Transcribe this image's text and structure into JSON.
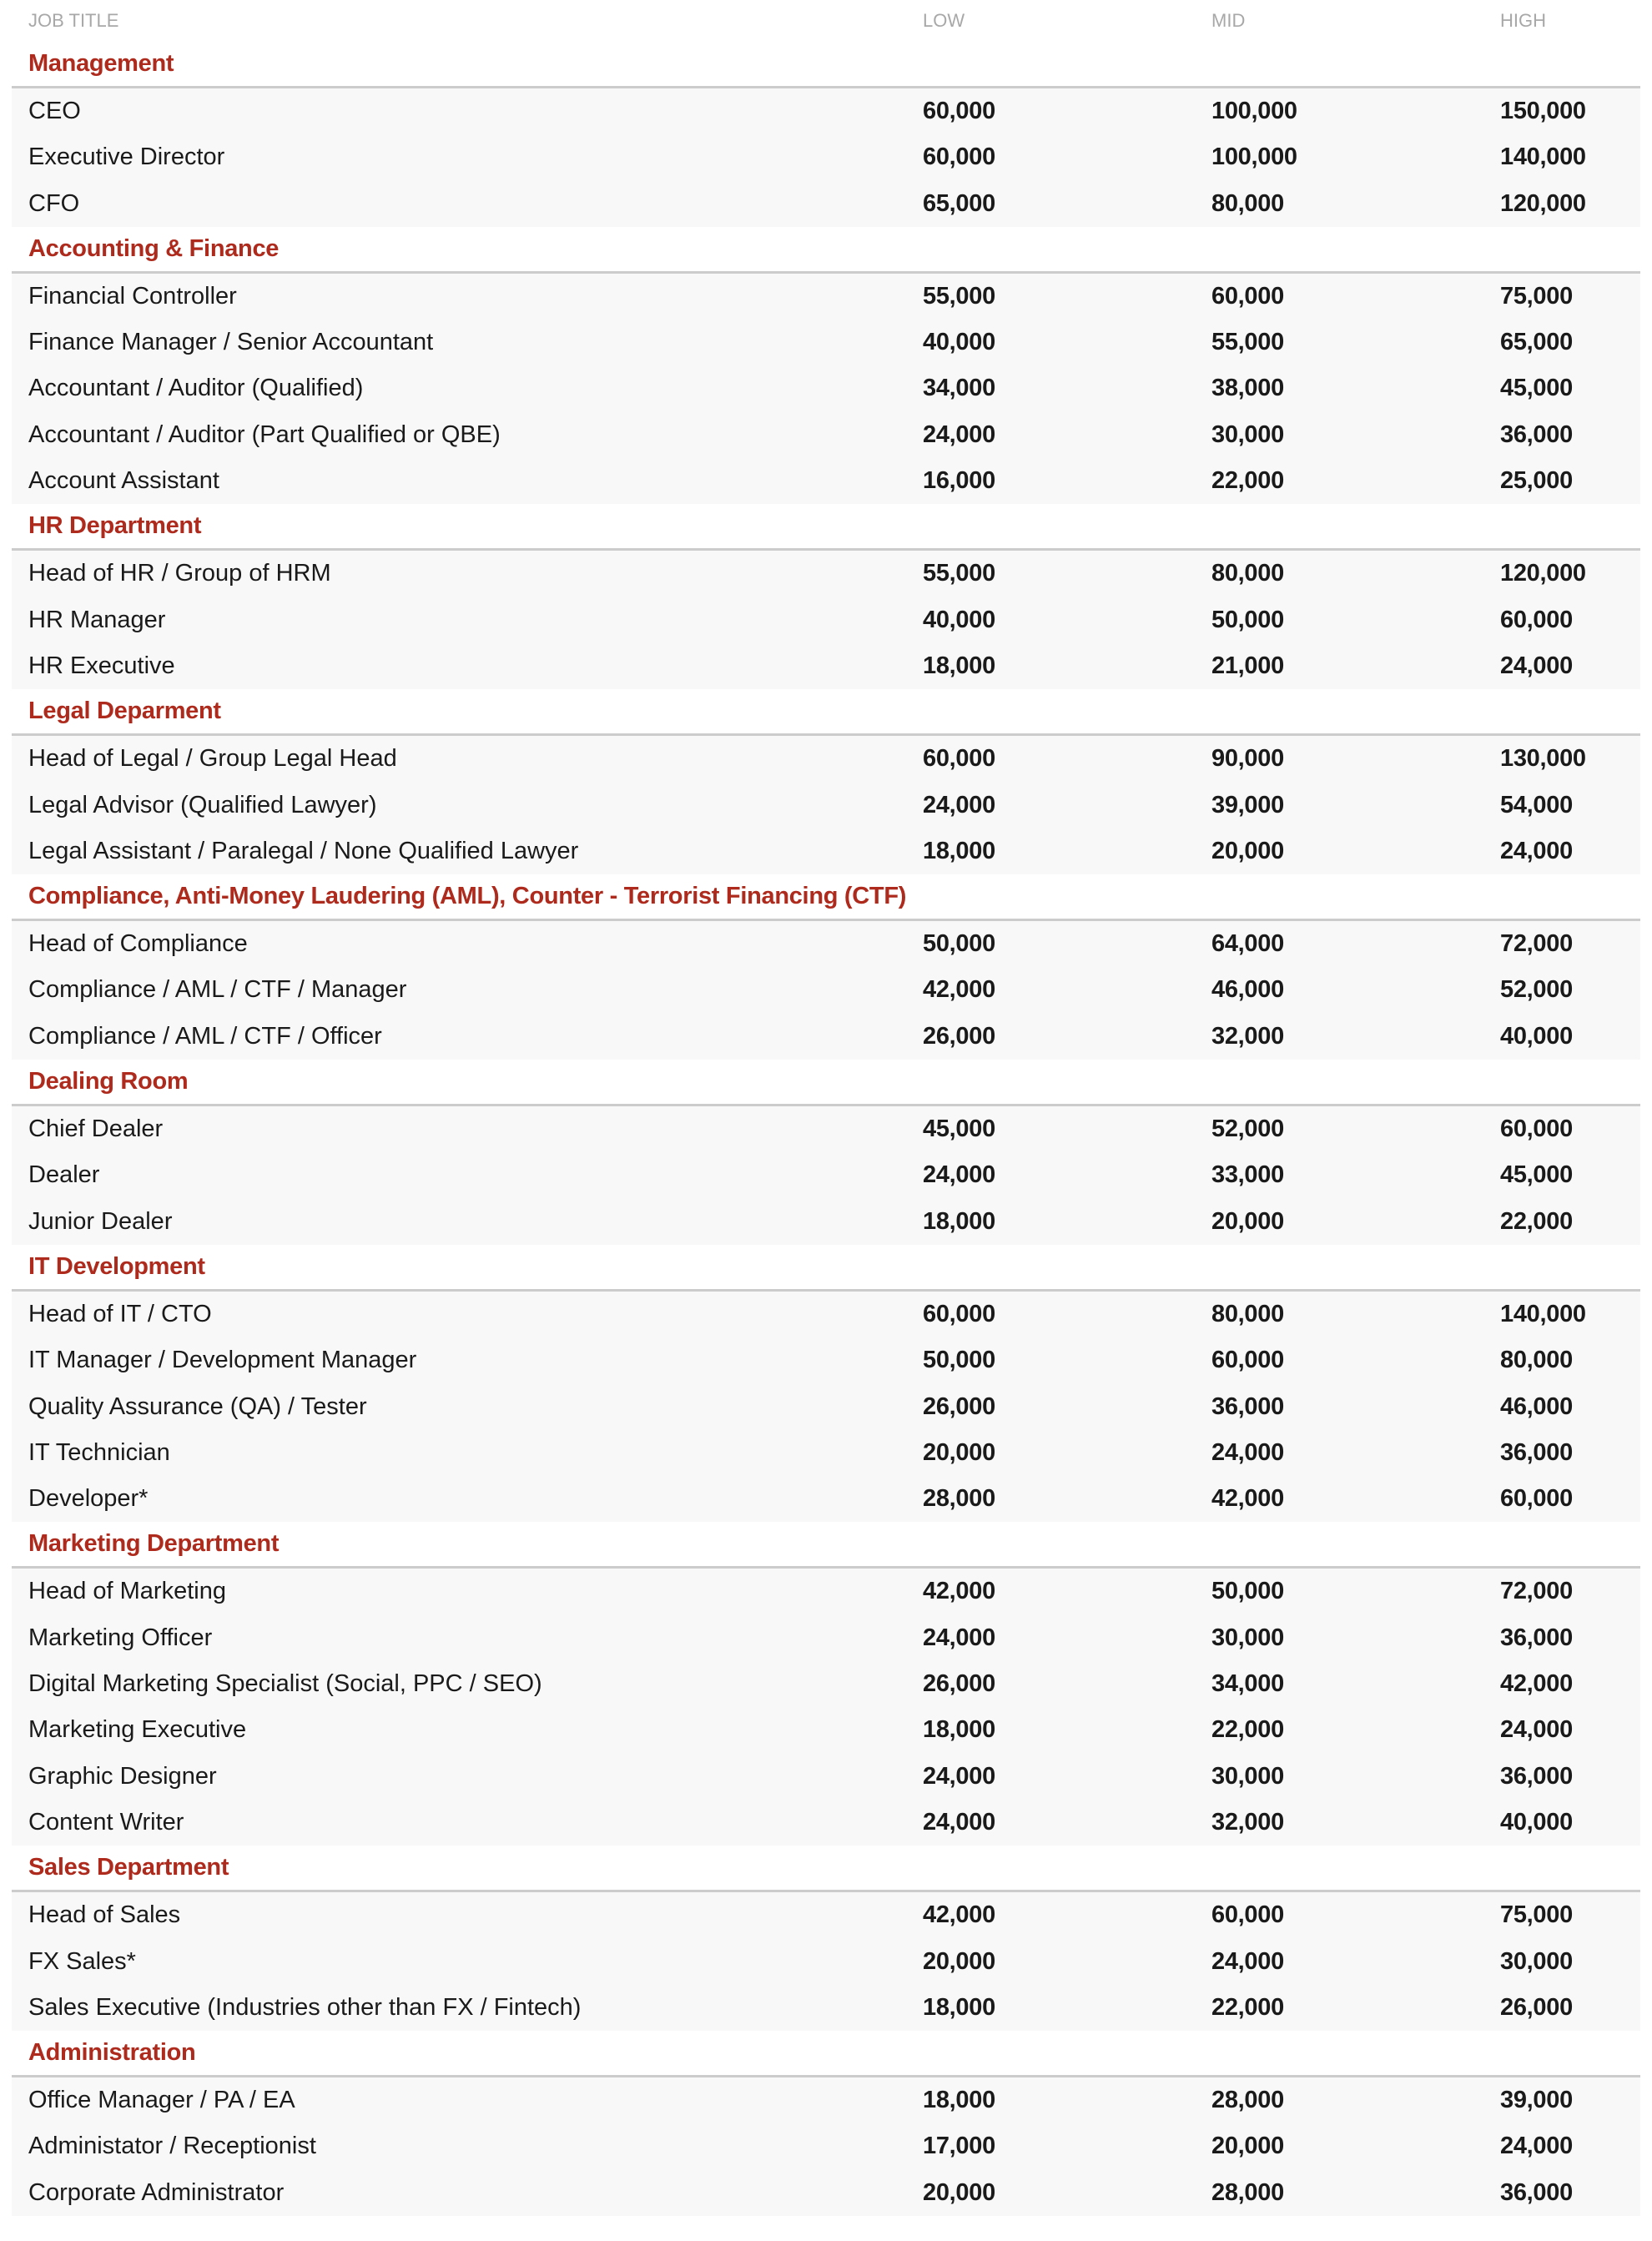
{
  "header": {
    "job_title": "JOB TITLE",
    "low": "LOW",
    "mid": "MID",
    "high": "HIGH"
  },
  "colors": {
    "section_title": "#ad2a1c",
    "header_text": "#a8a8a8",
    "row_background": "#f8f8f8",
    "divider": "#cccccc"
  },
  "sections": [
    {
      "title": "Management",
      "rows": [
        [
          "CEO",
          "60,000",
          "100,000",
          "150,000"
        ],
        [
          "Executive Director",
          "60,000",
          "100,000",
          "140,000"
        ],
        [
          "CFO",
          "65,000",
          "80,000",
          "120,000"
        ]
      ]
    },
    {
      "title": "Accounting & Finance",
      "rows": [
        [
          "Financial Controller",
          "55,000",
          "60,000",
          "75,000"
        ],
        [
          "Finance Manager / Senior Accountant",
          "40,000",
          "55,000",
          "65,000"
        ],
        [
          "Accountant / Auditor (Qualified)",
          "34,000",
          "38,000",
          "45,000"
        ],
        [
          "Accountant / Auditor (Part Qualified or QBE)",
          "24,000",
          "30,000",
          "36,000"
        ],
        [
          "Account Assistant",
          "16,000",
          "22,000",
          "25,000"
        ]
      ]
    },
    {
      "title": "HR Department",
      "rows": [
        [
          "Head of HR / Group of HRM",
          "55,000",
          "80,000",
          "120,000"
        ],
        [
          "HR Manager",
          "40,000",
          "50,000",
          "60,000"
        ],
        [
          "HR Executive",
          "18,000",
          "21,000",
          "24,000"
        ]
      ]
    },
    {
      "title": "Legal Deparment",
      "rows": [
        [
          "Head of Legal / Group Legal Head",
          "60,000",
          "90,000",
          "130,000"
        ],
        [
          "Legal Advisor (Qualified Lawyer)",
          "24,000",
          "39,000",
          "54,000"
        ],
        [
          "Legal Assistant / Paralegal / None Qualified Lawyer",
          "18,000",
          "20,000",
          "24,000"
        ]
      ]
    },
    {
      "title": "Compliance, Anti-Money Laudering (AML), Counter - Terrorist Financing (CTF)",
      "rows": [
        [
          "Head of Compliance",
          "50,000",
          "64,000",
          "72,000"
        ],
        [
          "Compliance / AML / CTF / Manager",
          "42,000",
          "46,000",
          "52,000"
        ],
        [
          "Compliance / AML / CTF / Officer",
          "26,000",
          "32,000",
          "40,000"
        ]
      ]
    },
    {
      "title": "Dealing Room",
      "rows": [
        [
          "Chief Dealer",
          "45,000",
          "52,000",
          "60,000"
        ],
        [
          "Dealer",
          "24,000",
          "33,000",
          "45,000"
        ],
        [
          "Junior Dealer",
          "18,000",
          "20,000",
          "22,000"
        ]
      ]
    },
    {
      "title": "IT Development",
      "rows": [
        [
          "Head of IT / CTO",
          "60,000",
          "80,000",
          "140,000"
        ],
        [
          "IT Manager / Development Manager",
          "50,000",
          "60,000",
          "80,000"
        ],
        [
          "Quality Assurance (QA) /  Tester",
          "26,000",
          "36,000",
          "46,000"
        ],
        [
          "IT Technician",
          "20,000",
          "24,000",
          "36,000"
        ],
        [
          "Developer*",
          "28,000",
          "42,000",
          "60,000"
        ]
      ]
    },
    {
      "title": "Marketing Department",
      "rows": [
        [
          "Head of Marketing",
          "42,000",
          "50,000",
          "72,000"
        ],
        [
          "Marketing Officer",
          "24,000",
          "30,000",
          "36,000"
        ],
        [
          "Digital Marketing Specialist (Social, PPC / SEO)",
          "26,000",
          "34,000",
          "42,000"
        ],
        [
          "Marketing Executive",
          "18,000",
          "22,000",
          "24,000"
        ],
        [
          "Graphic Designer",
          "24,000",
          "30,000",
          "36,000"
        ],
        [
          "Content Writer",
          "24,000",
          "32,000",
          "40,000"
        ]
      ]
    },
    {
      "title": "Sales Department",
      "rows": [
        [
          "Head of Sales",
          "42,000",
          "60,000",
          "75,000"
        ],
        [
          "FX Sales*",
          "20,000",
          "24,000",
          "30,000"
        ],
        [
          "Sales Executive (Industries other than FX / Fintech)",
          "18,000",
          "22,000",
          "26,000"
        ]
      ]
    },
    {
      "title": "Administration",
      "rows": [
        [
          "Office Manager / PA / EA",
          "18,000",
          "28,000",
          "39,000"
        ],
        [
          "Administator / Receptionist",
          "17,000",
          "20,000",
          "24,000"
        ],
        [
          "Corporate Administrator",
          "20,000",
          "28,000",
          "36,000"
        ]
      ]
    }
  ]
}
